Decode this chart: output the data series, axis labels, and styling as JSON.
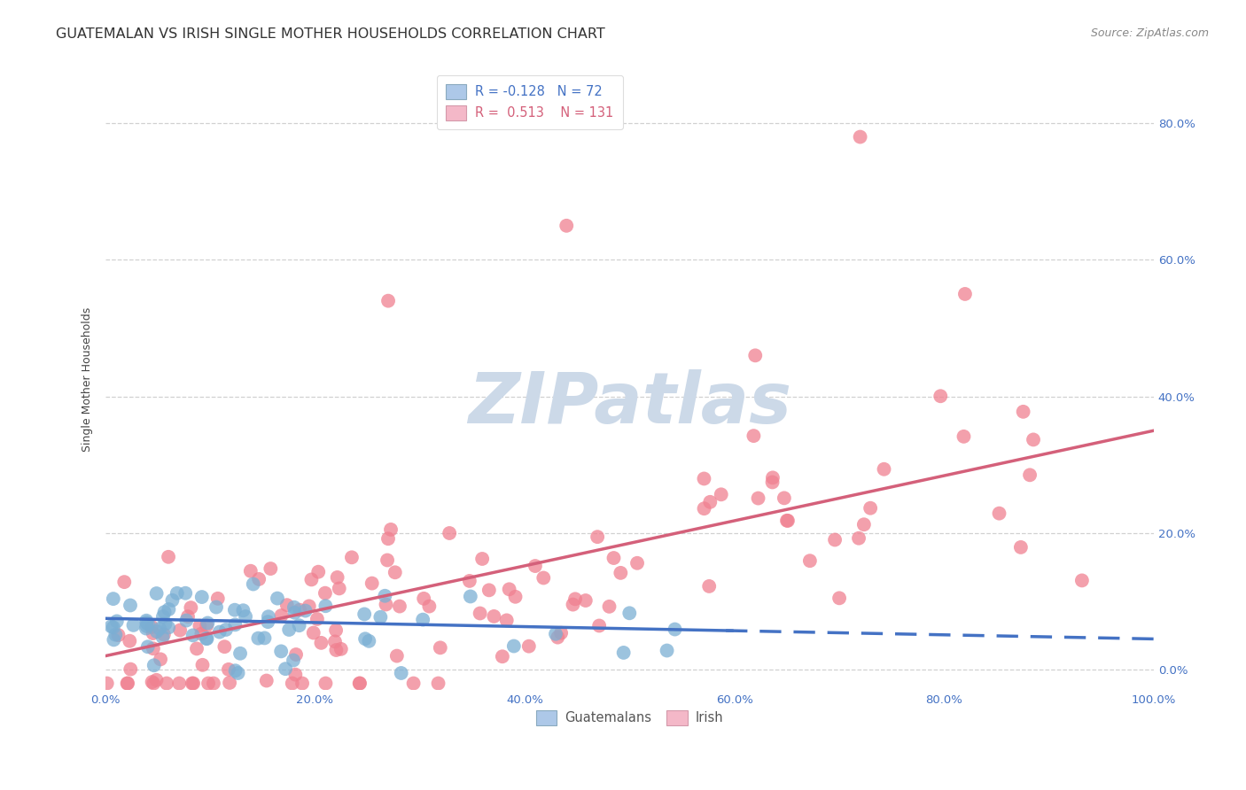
{
  "title": "GUATEMALAN VS IRISH SINGLE MOTHER HOUSEHOLDS CORRELATION CHART",
  "source": "Source: ZipAtlas.com",
  "ylabel_label": "Single Mother Households",
  "watermark": "ZIPatlas",
  "guatemalan_color": "#7bafd4",
  "irish_color": "#f08090",
  "guatemalan_line_color": "#4472c4",
  "irish_line_color": "#d4607a",
  "guatemalan_r": -0.128,
  "guatemalan_n": 72,
  "irish_r": 0.513,
  "irish_n": 131,
  "xmin": 0.0,
  "xmax": 1.0,
  "ymin": -0.03,
  "ymax": 0.88,
  "grid_color": "#cccccc",
  "background_color": "#ffffff",
  "title_fontsize": 11.5,
  "source_fontsize": 9,
  "axis_label_fontsize": 9,
  "tick_fontsize": 9.5,
  "legend_fontsize": 10.5,
  "watermark_color": "#ccd9e8",
  "watermark_fontsize": 58,
  "scatter_size": 130,
  "scatter_alpha": 0.75
}
